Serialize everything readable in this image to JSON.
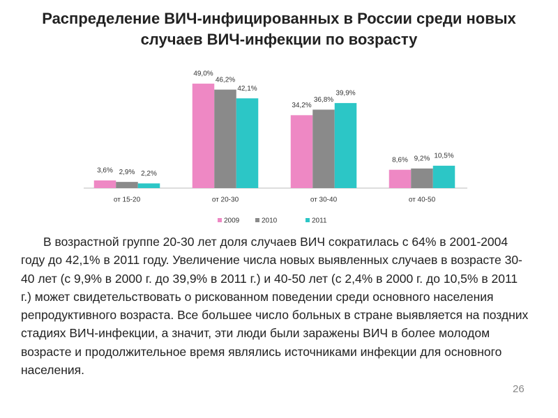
{
  "chart_data": {
    "type": "bar",
    "title": "Распределение ВИЧ-инфицированных в России среди новых случаев ВИЧ-инфекции по возрасту",
    "categories": [
      "от 15-20",
      "от 20-30",
      "от 30-40",
      "от 40-50"
    ],
    "series": [
      {
        "name": "2009",
        "color": "#ee88c4",
        "values": [
          3.6,
          49.0,
          34.2,
          8.6
        ],
        "value_labels": [
          "3,6%",
          "49,0%",
          "34,2%",
          "8,6%"
        ]
      },
      {
        "name": "2010",
        "color": "#8a8a8a",
        "values": [
          2.9,
          46.2,
          36.8,
          9.2
        ],
        "value_labels": [
          "2,9%",
          "46,2%",
          "36,8%",
          "9,2%"
        ]
      },
      {
        "name": "2011",
        "color": "#2cc6c6",
        "values": [
          2.2,
          42.1,
          39.9,
          10.5
        ],
        "value_labels": [
          "2,2%",
          "42,1%",
          "39,9%",
          "10,5%"
        ]
      }
    ],
    "legend": "bottom"
  },
  "body_text": "В возрастной группе 20-30 лет доля случаев ВИЧ сократилась с 64% в 2001-2004 году до 42,1% в 2011 году. Увеличение числа новых выявленных случаев в возрасте 30-40 лет (с 9,9% в 2000 г. до 39,9% в 2011 г.) и 40-50 лет (с 2,4% в 2000 г. до 10,5% в 2011 г.) может свидетельствовать о рискованном поведении среди основного населения репродуктивного возраста. Все большее число больных в стране выявляется на поздних стадиях ВИЧ-инфекции, а значит, эти люди были заражены ВИЧ в более молодом возрасте и продолжительное время являлись источниками инфекции для основного населения.",
  "page_number": "26"
}
